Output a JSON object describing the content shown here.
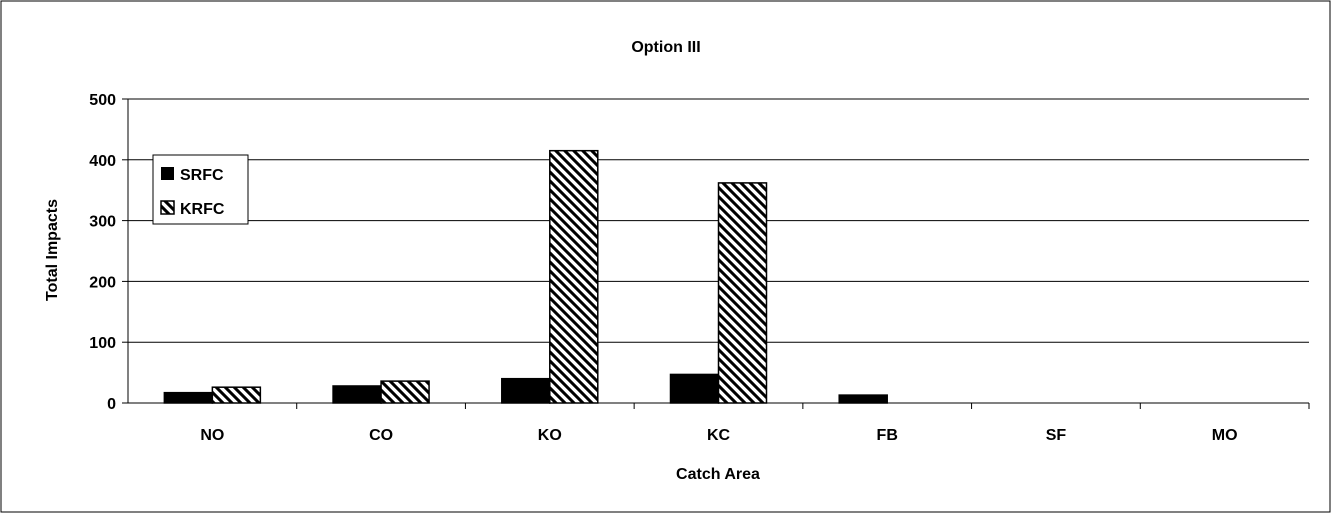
{
  "chart_data": {
    "type": "bar",
    "title": "Option III",
    "xlabel": "Catch Area",
    "ylabel": "Total Impacts",
    "categories": [
      "NO",
      "CO",
      "KO",
      "KC",
      "FB",
      "SF",
      "MO"
    ],
    "series": [
      {
        "name": "SRFC",
        "values": [
          17,
          28,
          40,
          47,
          13,
          0,
          0
        ],
        "fill": "solid",
        "color": "#000000"
      },
      {
        "name": "KRFC",
        "values": [
          26,
          36,
          415,
          362,
          0,
          0,
          0
        ],
        "fill": "hatch",
        "color": "#000000"
      }
    ],
    "ylim": [
      0,
      500
    ],
    "yticks": [
      0,
      100,
      200,
      300,
      400,
      500
    ],
    "grid": true,
    "legend_position": "top-left"
  }
}
